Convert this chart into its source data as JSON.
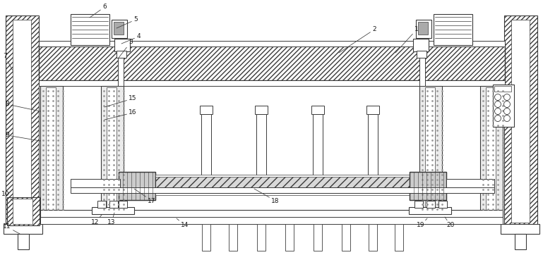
{
  "bg_color": "#ffffff",
  "lc": "#3a3a3a",
  "lw": 0.7,
  "fig_w": 7.69,
  "fig_h": 3.62
}
